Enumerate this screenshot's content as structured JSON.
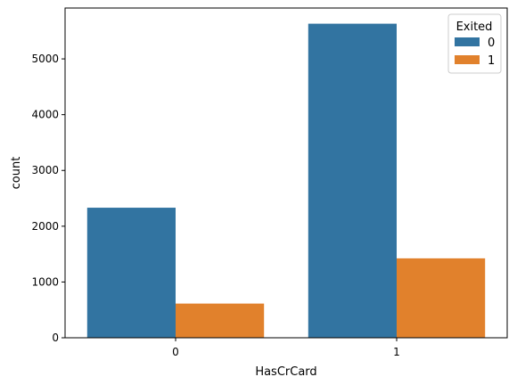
{
  "chart_data": {
    "type": "bar",
    "title": "",
    "xlabel": "HasCrCard",
    "ylabel": "count",
    "categories": [
      "0",
      "1"
    ],
    "series": [
      {
        "name": "0",
        "values": [
          2332,
          5631
        ],
        "color": "#3274a1"
      },
      {
        "name": "1",
        "values": [
          613,
          1424
        ],
        "color": "#e1812c"
      }
    ],
    "ylim": [
      0,
      5912
    ],
    "yticks": [
      0,
      1000,
      2000,
      3000,
      4000,
      5000
    ],
    "grid": false,
    "legend": {
      "title": "Exited",
      "placement": "top-right"
    }
  }
}
